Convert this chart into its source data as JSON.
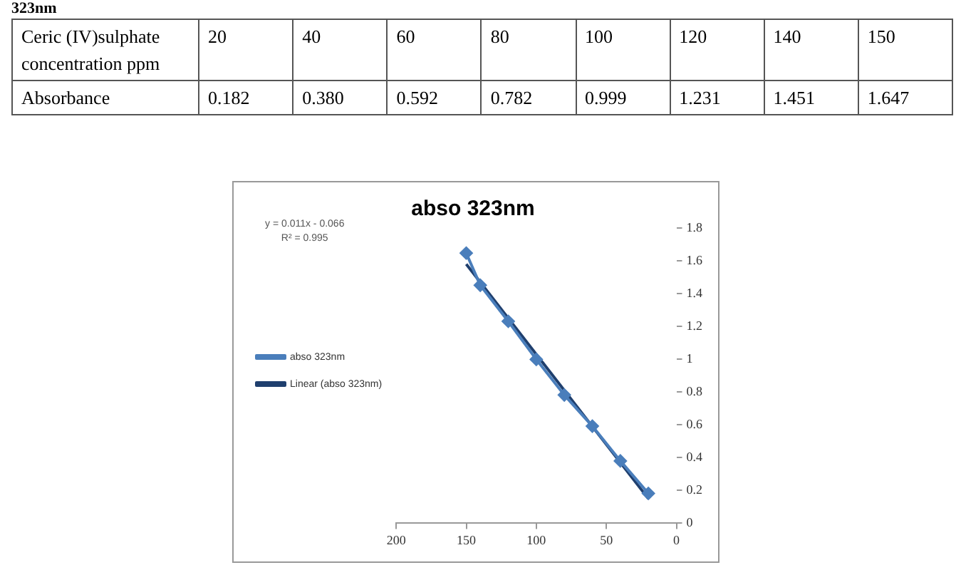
{
  "chart_data": [
    {
      "type": "other",
      "title": "323nm",
      "annotations": [
        "Ceric (IV)sulphate concentration ppm",
        "20",
        "40",
        "60",
        "80",
        "100",
        "120",
        "140",
        "150",
        "Absorbance",
        "0.182",
        "0.380",
        "0.592",
        "0.782",
        "0.999",
        "1.231",
        "1.451",
        "1.647"
      ]
    },
    {
      "type": "line",
      "title": "abso 323nm",
      "annotations": [
        "y = 0.011x - 0.066",
        "R² = 0.995"
      ],
      "series": [
        {
          "name": "abso 323nm",
          "color": "#4a7ebb",
          "marker": "diamond",
          "x": [
            20,
            40,
            60,
            80,
            100,
            120,
            140,
            150
          ],
          "values": [
            0.182,
            0.38,
            0.592,
            0.782,
            0.999,
            1.231,
            1.451,
            1.647
          ]
        },
        {
          "name": "Linear (abso 323nm)",
          "type": "line",
          "color": "#1f3f6e",
          "marker": "none",
          "x": [
            20,
            150
          ],
          "values": [
            0.15,
            1.58
          ]
        }
      ],
      "xlim": [
        200,
        0
      ],
      "xticks": [
        200,
        150,
        100,
        50,
        0
      ],
      "ylim": [
        0,
        1.8
      ],
      "yticks": [
        0,
        0.2,
        0.4,
        0.6,
        0.8,
        1,
        1.2,
        1.4,
        1.6,
        1.8
      ],
      "legend": "left"
    }
  ]
}
